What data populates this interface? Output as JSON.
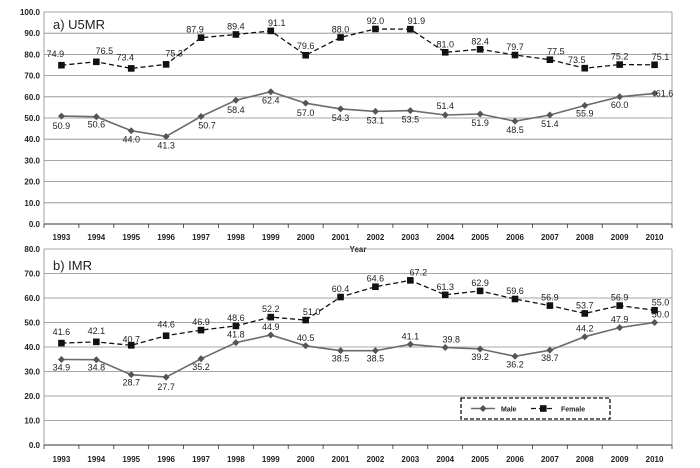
{
  "chart_data": [
    {
      "type": "line",
      "title": "a) U5MR",
      "xlabel": "Year",
      "ylabel": "",
      "ylim": [
        0,
        100
      ],
      "yticks": [
        "0.0",
        "10.0",
        "20.0",
        "30.0",
        "40.0",
        "50.0",
        "60.0",
        "70.0",
        "80.0",
        "90.0",
        "100.0"
      ],
      "categories": [
        "1993",
        "1994",
        "1995",
        "1996",
        "1997",
        "1998",
        "1999",
        "2000",
        "2001",
        "2002",
        "2003",
        "2004",
        "2005",
        "2006",
        "2007",
        "2008",
        "2009",
        "2010"
      ],
      "grid": true,
      "series": [
        {
          "name": "Male",
          "values": [
            50.9,
            50.6,
            44.0,
            41.3,
            50.7,
            58.4,
            62.4,
            57.0,
            54.3,
            53.1,
            53.5,
            51.4,
            51.9,
            48.5,
            51.4,
            55.9,
            60.0,
            61.6
          ],
          "labels": [
            "50.9",
            "50.6",
            "44.0",
            "41.3",
            "50.7",
            "58.4",
            "62.4",
            "57.0",
            "54.3",
            "53.1",
            "53.5",
            "51.4",
            "51.9",
            "48.5",
            "51.4",
            "55.9",
            "60.0",
            "61.6"
          ]
        },
        {
          "name": "Female",
          "values": [
            74.9,
            76.5,
            73.4,
            75.3,
            87.9,
            89.4,
            91.1,
            79.6,
            88.0,
            92.0,
            91.9,
            81.0,
            82.4,
            79.7,
            77.5,
            73.5,
            75.2,
            75.1
          ],
          "labels": [
            "74.9",
            "76.5",
            "73.4",
            "75.3",
            "87.9",
            "89.4",
            "91.1",
            "79.6",
            "88.0",
            "92.0",
            "91.9",
            "81.0",
            "82.4",
            "79.7",
            "77.5",
            "73.5",
            "75.2",
            "75.1"
          ]
        }
      ]
    },
    {
      "type": "line",
      "title": "b) IMR",
      "xlabel": "",
      "ylabel": "",
      "ylim": [
        0,
        80
      ],
      "yticks": [
        "0.0",
        "10.0",
        "20.0",
        "30.0",
        "40.0",
        "50.0",
        "60.0",
        "70.0",
        "80.0"
      ],
      "categories": [
        "1993",
        "1994",
        "1995",
        "1996",
        "1997",
        "1998",
        "1999",
        "2000",
        "2001",
        "2002",
        "2003",
        "2004",
        "2005",
        "2006",
        "2007",
        "2008",
        "2009",
        "2010"
      ],
      "grid": true,
      "legend": {
        "position": "bottom-right",
        "entries": [
          "Male",
          "Female"
        ]
      },
      "series": [
        {
          "name": "Male",
          "values": [
            34.9,
            34.8,
            28.7,
            27.7,
            35.2,
            41.8,
            44.9,
            40.5,
            38.5,
            38.5,
            41.1,
            39.8,
            39.2,
            36.2,
            38.7,
            44.2,
            47.9,
            50.0
          ],
          "labels": [
            "34.9",
            "34.8",
            "28.7",
            "27.7",
            "35.2",
            "41.8",
            "44.9",
            "40.5",
            "38.5",
            "38.5",
            "41.1",
            "39.8",
            "39.2",
            "36.2",
            "38.7",
            "44.2",
            "47.9",
            "50.0"
          ]
        },
        {
          "name": "Female",
          "values": [
            41.6,
            42.1,
            40.7,
            44.6,
            46.9,
            48.6,
            52.2,
            51.0,
            60.4,
            64.6,
            67.2,
            61.3,
            62.9,
            59.6,
            56.9,
            53.7,
            56.9,
            55.0
          ],
          "labels": [
            "41.6",
            "42.1",
            "40.7",
            "44.6",
            "46.9",
            "48.6",
            "52.2",
            "51.0",
            "60.4",
            "64.6",
            "67.2",
            "61.3",
            "62.9",
            "59.6",
            "56.9",
            "53.7",
            "56.9",
            "55.0"
          ]
        }
      ]
    }
  ]
}
